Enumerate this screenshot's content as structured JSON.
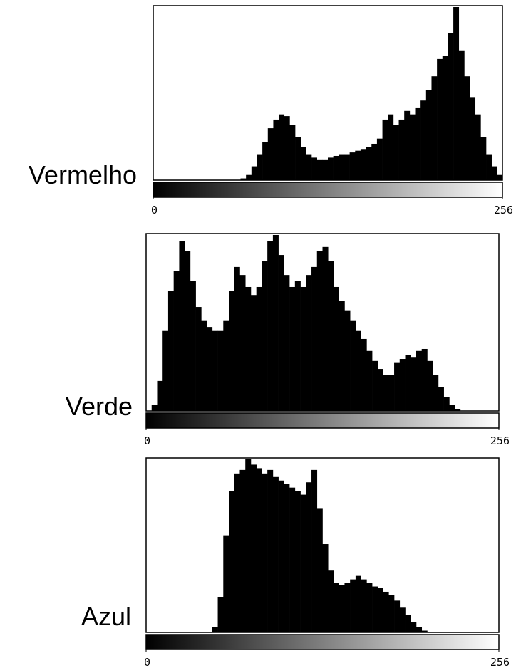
{
  "chart_data": [
    {
      "type": "histogram",
      "title": "Vermelho",
      "color": "#000000",
      "xlim": [
        0,
        256
      ],
      "xticks": [
        0,
        256
      ],
      "bins": [
        0,
        4,
        8,
        12,
        16,
        20,
        24,
        28,
        32,
        36,
        40,
        44,
        48,
        52,
        56,
        60,
        64,
        68,
        72,
        76,
        80,
        84,
        88,
        92,
        96,
        100,
        104,
        108,
        112,
        116,
        120,
        124,
        128,
        132,
        136,
        140,
        144,
        148,
        152,
        156,
        160,
        164,
        168,
        172,
        176,
        180,
        184,
        188,
        192,
        196,
        200,
        204,
        208,
        212,
        216,
        220,
        224,
        228,
        232,
        236,
        240,
        244,
        248,
        252,
        256
      ],
      "values": [
        0,
        0,
        0,
        0,
        0,
        0,
        0,
        0,
        0,
        0,
        0,
        0,
        0,
        0,
        0,
        0,
        1,
        3,
        8,
        15,
        22,
        30,
        35,
        38,
        37,
        32,
        25,
        19,
        15,
        13,
        12,
        12,
        13,
        14,
        15,
        15,
        16,
        17,
        18,
        19,
        21,
        24,
        35,
        38,
        32,
        35,
        40,
        38,
        42,
        46,
        52,
        60,
        70,
        72,
        85,
        100,
        75,
        60,
        48,
        38,
        25,
        15,
        8,
        3
      ]
    },
    {
      "type": "histogram",
      "title": "Verde",
      "color": "#000000",
      "xlim": [
        0,
        256
      ],
      "xticks": [
        0,
        256
      ],
      "bins": [
        0,
        4,
        8,
        12,
        16,
        20,
        24,
        28,
        32,
        36,
        40,
        44,
        48,
        52,
        56,
        60,
        64,
        68,
        72,
        76,
        80,
        84,
        88,
        92,
        96,
        100,
        104,
        108,
        112,
        116,
        120,
        124,
        128,
        132,
        136,
        140,
        144,
        148,
        152,
        156,
        160,
        164,
        168,
        172,
        176,
        180,
        184,
        188,
        192,
        196,
        200,
        204,
        208,
        212,
        216,
        220,
        224,
        228,
        232,
        236,
        240,
        244,
        248,
        252,
        256
      ],
      "values": [
        0,
        3,
        15,
        40,
        60,
        70,
        85,
        80,
        65,
        52,
        45,
        42,
        40,
        40,
        45,
        60,
        72,
        68,
        62,
        58,
        62,
        75,
        85,
        88,
        78,
        68,
        62,
        65,
        62,
        68,
        72,
        80,
        82,
        75,
        62,
        55,
        50,
        45,
        40,
        36,
        30,
        25,
        21,
        18,
        18,
        24,
        26,
        28,
        27,
        30,
        31,
        25,
        18,
        12,
        7,
        3,
        1,
        0,
        0,
        0,
        0,
        0,
        0,
        0
      ]
    },
    {
      "type": "histogram",
      "title": "Azul",
      "color": "#000000",
      "xlim": [
        0,
        256
      ],
      "xticks": [
        0,
        256
      ],
      "bins": [
        0,
        4,
        8,
        12,
        16,
        20,
        24,
        28,
        32,
        36,
        40,
        44,
        48,
        52,
        56,
        60,
        64,
        68,
        72,
        76,
        80,
        84,
        88,
        92,
        96,
        100,
        104,
        108,
        112,
        116,
        120,
        124,
        128,
        132,
        136,
        140,
        144,
        148,
        152,
        156,
        160,
        164,
        168,
        172,
        176,
        180,
        184,
        188,
        192,
        196,
        200,
        204,
        208,
        212,
        216,
        220,
        224,
        228,
        232,
        236,
        240,
        244,
        248,
        252,
        256
      ],
      "values": [
        0,
        0,
        0,
        0,
        0,
        0,
        0,
        0,
        0,
        0,
        0,
        0,
        3,
        20,
        55,
        80,
        90,
        92,
        98,
        95,
        93,
        90,
        92,
        88,
        86,
        84,
        82,
        80,
        78,
        85,
        92,
        70,
        50,
        35,
        28,
        27,
        28,
        30,
        32,
        30,
        28,
        26,
        25,
        23,
        21,
        18,
        14,
        10,
        6,
        3,
        1,
        0,
        0,
        0,
        0,
        0,
        0,
        0,
        0,
        0,
        0,
        0,
        0,
        0
      ]
    }
  ]
}
